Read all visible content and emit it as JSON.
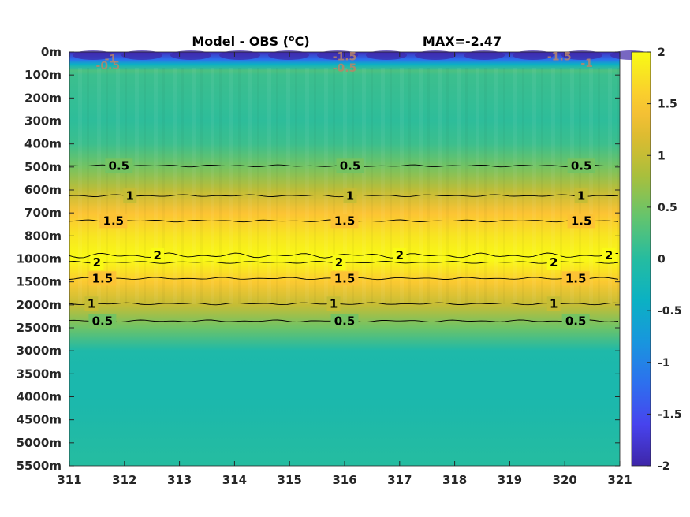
{
  "chart_data": {
    "type": "heatmap",
    "title": "Model - OBS (oC)",
    "title_parts": {
      "main": "Model - OBS (",
      "sup": "o",
      "unit": "C)"
    },
    "max_text": "MAX=-2.47",
    "xlabel": "",
    "ylabel": "",
    "x_ticks": [
      "311",
      "312",
      "313",
      "314",
      "315",
      "316",
      "317",
      "318",
      "319",
      "320",
      "321"
    ],
    "xlim": [
      311,
      321
    ],
    "y_ticks": [
      "0m",
      "100m",
      "200m",
      "300m",
      "400m",
      "500m",
      "600m",
      "700m",
      "800m",
      "1000m",
      "1500m",
      "2000m",
      "2500m",
      "3000m",
      "3500m",
      "4000m",
      "4500m",
      "5000m",
      "5500m"
    ],
    "colorbar": {
      "ticks": [
        "2",
        "1.5",
        "1",
        "0.5",
        "0",
        "-0.5",
        "-1",
        "-1.5",
        "-2"
      ],
      "clim": [
        -2,
        2
      ],
      "colormap": "parula"
    },
    "depth_profile": [
      {
        "depth": "0m",
        "value": -1.9
      },
      {
        "depth": "100m",
        "value": 0.15
      },
      {
        "depth": "200m",
        "value": 0.1
      },
      {
        "depth": "300m",
        "value": 0.05
      },
      {
        "depth": "400m",
        "value": 0.15
      },
      {
        "depth": "500m",
        "value": 0.5
      },
      {
        "depth": "600m",
        "value": 0.95
      },
      {
        "depth": "700m",
        "value": 1.5
      },
      {
        "depth": "800m",
        "value": 1.8
      },
      {
        "depth": "1000m",
        "value": 2.05
      },
      {
        "depth": "1500m",
        "value": 1.55
      },
      {
        "depth": "2000m",
        "value": 1.0
      },
      {
        "depth": "2500m",
        "value": 0.45
      },
      {
        "depth": "3000m",
        "value": -0.1
      },
      {
        "depth": "3500m",
        "value": -0.15
      },
      {
        "depth": "4000m",
        "value": -0.15
      },
      {
        "depth": "4500m",
        "value": -0.1
      },
      {
        "depth": "5000m",
        "value": -0.05
      },
      {
        "depth": "5500m",
        "value": 0.0
      }
    ],
    "contours": [
      {
        "level": "0.5",
        "depth_index": 4.95,
        "x_labels": [
          311.9,
          316.1,
          320.3
        ]
      },
      {
        "level": "1",
        "depth_index": 6.25,
        "x_labels": [
          312.1,
          316.1,
          320.3
        ]
      },
      {
        "level": "1.5",
        "depth_index": 7.35,
        "x_labels": [
          311.8,
          316.0,
          320.3
        ]
      },
      {
        "level": "2",
        "depth_index": 8.85,
        "x_labels": [
          312.6,
          317.0,
          320.8
        ],
        "wavy": true
      },
      {
        "level": "2",
        "depth_index": 9.15,
        "x_labels": [
          311.5,
          315.9,
          319.8
        ]
      },
      {
        "level": "1.5",
        "depth_index": 9.85,
        "x_labels": [
          311.6,
          316.0,
          320.2
        ]
      },
      {
        "level": "1",
        "depth_index": 10.95,
        "x_labels": [
          311.4,
          315.8,
          319.8
        ]
      },
      {
        "level": "0.5",
        "depth_index": 11.7,
        "x_labels": [
          311.6,
          316.0,
          320.2
        ]
      }
    ],
    "surface_labels": [
      {
        "text": "-1",
        "x": 311.75,
        "depth_index": 0.25
      },
      {
        "text": "-0.5",
        "x": 311.7,
        "depth_index": 0.55
      },
      {
        "text": "-1.5",
        "x": 316.0,
        "depth_index": 0.15
      },
      {
        "text": "-0.5",
        "x": 316.0,
        "depth_index": 0.65
      },
      {
        "text": "-1.5",
        "x": 319.9,
        "depth_index": 0.15
      },
      {
        "text": "-1",
        "x": 320.4,
        "depth_index": 0.45
      }
    ]
  }
}
